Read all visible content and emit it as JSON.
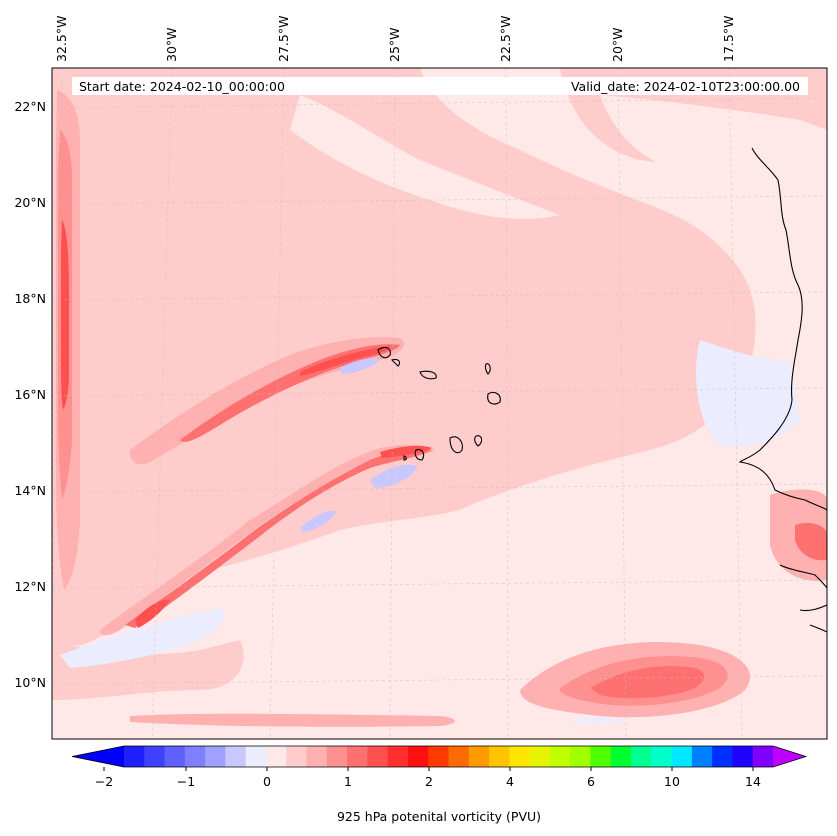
{
  "header": {
    "start_date": "Start date: 2024-02-10_00:00:00",
    "valid_date": "Valid_date: 2024-02-10T23:00:00.00"
  },
  "map": {
    "lon_labels": [
      "32.5°W",
      "30°W",
      "27.5°W",
      "25°W",
      "22.5°W",
      "20°W",
      "17.5°W"
    ],
    "lat_labels": [
      "22°N",
      "20°N",
      "18°N",
      "16°N",
      "14°N",
      "12°N",
      "10°N"
    ]
  },
  "colorbar": {
    "label": "925 hPa potenital vorticity (PVU)",
    "tick_labels": [
      "−2",
      "−1",
      "0",
      "1",
      "2",
      "4",
      "6",
      "10",
      "14"
    ],
    "colors": [
      "#0000ff",
      "#2020ff",
      "#4040ff",
      "#6060ff",
      "#8080ff",
      "#a0a0ff",
      "#c8c8ff",
      "#ececff",
      "#ffe8e8",
      "#ffcccc",
      "#ffb0b0",
      "#ff9090",
      "#ff7070",
      "#ff5050",
      "#ff2f2f",
      "#ff0f0f",
      "#ff3a00",
      "#ff6a00",
      "#ff9a00",
      "#ffc400",
      "#ffe600",
      "#e5f500",
      "#c0ff00",
      "#a0ff00",
      "#4dff00",
      "#00ff30",
      "#00ff90",
      "#00ffc8",
      "#00e8ff",
      "#0080ff",
      "#0030ff",
      "#2000ff",
      "#8000ff",
      "#c000ff"
    ]
  }
}
